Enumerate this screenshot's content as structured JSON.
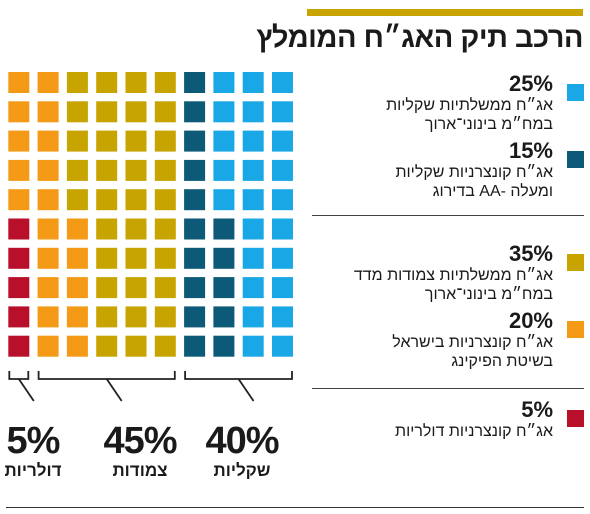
{
  "title": "הרכב תיק האג״ח המומלץ",
  "legend": [
    {
      "pct": "25%",
      "line1": "אג״ח ממשלתיות שקליות",
      "line2": "במח״מ בינוני־ארוך",
      "color": "#1aa7e6"
    },
    {
      "pct": "15%",
      "line1": "אג״ח קונצרניות שקליות",
      "line2": "בדירוג AA- ומעלה",
      "color": "#0c5a78"
    },
    {
      "pct": "35%",
      "line1": "אג״ח ממשלתיות צמודות מדד",
      "line2": "במח״מ בינוני־ארוך",
      "color": "#c8a400"
    },
    {
      "pct": "20%",
      "line1": "אג״ח קונצרניות בישראל",
      "line2": "בשיטת הפיקינג",
      "color": "#f49a16"
    },
    {
      "pct": "5%",
      "line1": "אג״ח קונצרניות דולריות",
      "line2": "",
      "color": "#b80f2a"
    }
  ],
  "groups": [
    {
      "pct": "5%",
      "label": "דולריות"
    },
    {
      "pct": "45%",
      "label": "צמודות"
    },
    {
      "pct": "40%",
      "label": "שקליות"
    }
  ],
  "chart_data": {
    "type": "waffle",
    "unit": "%",
    "title": "הרכב תיק האג״ח המומלץ",
    "categories": [
      "אג״ח ממשלתיות שקליות במח״מ בינוני־ארוך",
      "אג״ח קונצרניות שקליות בדירוג AA- ומעלה",
      "אג״ח ממשלתיות צמודות מדד במח״מ בינוני־ארוך",
      "אג״ח קונצרניות בישראל בשיטת הפיקינג",
      "אג״ח קונצרניות דולריות"
    ],
    "values": [
      25,
      15,
      35,
      20,
      5
    ],
    "colors": [
      "#1aa7e6",
      "#0c5a78",
      "#c8a400",
      "#f49a16",
      "#b80f2a"
    ],
    "grid_cells": 100,
    "groups": [
      {
        "name": "דולריות",
        "value": 5
      },
      {
        "name": "צמודות",
        "value": 45
      },
      {
        "name": "שקליות",
        "value": 40
      }
    ]
  }
}
